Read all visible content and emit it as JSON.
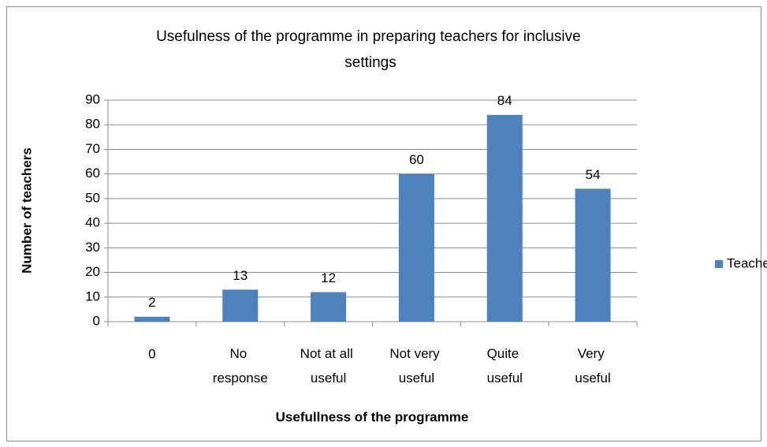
{
  "chart_data": {
    "type": "bar",
    "title": "Usefulness of the programme in preparing teachers for inclusive settings",
    "categories": [
      "0",
      "No response",
      "Not at all useful",
      "Not very useful",
      "Quite useful",
      "Very useful"
    ],
    "series": [
      {
        "name": "Teachers",
        "color": "#4f81bd",
        "values": [
          2,
          13,
          12,
          60,
          84,
          54
        ]
      }
    ],
    "xlabel": "Usefullness of the programme",
    "ylabel": "Number of teachers",
    "ylim": [
      0,
      90
    ],
    "yticks": [
      0,
      10,
      20,
      30,
      40,
      50,
      60,
      70,
      80,
      90
    ],
    "grid": true,
    "legend": "right"
  }
}
